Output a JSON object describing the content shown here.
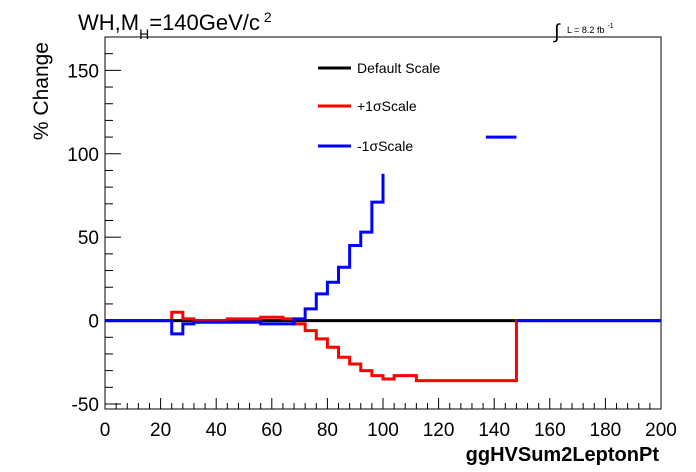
{
  "chart_data": {
    "type": "line",
    "title": {
      "main": "WH,M",
      "sub": "H",
      "rest": "=140GeV/c",
      "sup": "2"
    },
    "lumi": {
      "integral": "∫",
      "text": "L = 8.2 fb",
      "sup": "-1"
    },
    "xlabel": "ggHVSum2LeptonPt",
    "ylabel": "% Change",
    "xlim": [
      0,
      200
    ],
    "ylim": [
      -53,
      170
    ],
    "xticks": [
      0,
      20,
      40,
      60,
      80,
      100,
      120,
      140,
      160,
      180,
      200
    ],
    "yticks": [
      -50,
      0,
      50,
      100,
      150
    ],
    "legend_position": "top-center",
    "series": [
      {
        "name": "Default Scale",
        "color": "#000000",
        "step_x": [
          0,
          200
        ],
        "step_y": [
          0
        ]
      },
      {
        "name": "+1σScale",
        "color": "#ff0000",
        "step_x": [
          0,
          24,
          28,
          32,
          36,
          40,
          44,
          48,
          52,
          56,
          60,
          64,
          68,
          72,
          76,
          80,
          84,
          88,
          92,
          96,
          100,
          104,
          112,
          148,
          200
        ],
        "step_y": [
          0,
          5,
          1,
          0,
          0,
          0,
          1,
          1,
          1,
          2,
          2,
          1,
          -2,
          -6,
          -11,
          -16,
          -22,
          -26,
          -30,
          -33,
          -35,
          -33,
          -36,
          0
        ]
      },
      {
        "name": "-1σScale",
        "color": "#0000ff",
        "step_x": [
          0,
          24,
          28,
          32,
          36,
          40,
          44,
          48,
          52,
          56,
          60,
          64,
          68,
          72,
          76,
          80,
          84,
          88,
          92,
          96,
          100
        ],
        "step_y": [
          0,
          -8,
          -2,
          -1,
          -1,
          -1,
          -1,
          -1,
          -1,
          -2,
          -2,
          -2,
          1,
          7,
          16,
          23,
          32,
          45,
          53,
          71,
          88
        ],
        "extra_segments": [
          {
            "step_x": [
              137,
              148
            ],
            "step_y": [
              110
            ]
          },
          {
            "step_x": [
              148,
              200
            ],
            "step_y": [
              0
            ]
          }
        ]
      }
    ]
  }
}
